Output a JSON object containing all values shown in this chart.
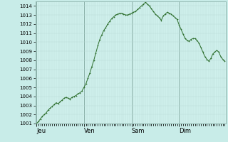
{
  "title": "",
  "background_color": "#c8ece8",
  "plot_bg_color": "#cff0ec",
  "grid_color_minor": "#b8d8d4",
  "grid_color_major": "#8ab0a8",
  "line_color": "#2d6e2d",
  "marker_color": "#2d6e2d",
  "ylim": [
    1001,
    1014.5
  ],
  "yticks": [
    1001,
    1002,
    1003,
    1004,
    1005,
    1006,
    1007,
    1008,
    1009,
    1010,
    1011,
    1012,
    1013,
    1014
  ],
  "day_labels": [
    "Jeu",
    "Ven",
    "Sam",
    "Dim"
  ],
  "day_positions": [
    0,
    24,
    48,
    72
  ],
  "num_hours": 96,
  "pressure_values": [
    1001.0,
    1001.2,
    1001.5,
    1001.8,
    1002.0,
    1002.2,
    1002.5,
    1002.7,
    1002.9,
    1003.1,
    1003.3,
    1003.2,
    1003.4,
    1003.6,
    1003.8,
    1003.9,
    1003.8,
    1003.7,
    1003.9,
    1004.0,
    1004.1,
    1004.3,
    1004.4,
    1004.6,
    1005.0,
    1005.4,
    1006.0,
    1006.6,
    1007.3,
    1008.0,
    1008.8,
    1009.6,
    1010.3,
    1010.8,
    1011.3,
    1011.6,
    1012.0,
    1012.3,
    1012.6,
    1012.8,
    1013.0,
    1013.1,
    1013.2,
    1013.2,
    1013.1,
    1013.0,
    1013.0,
    1013.1,
    1013.2,
    1013.3,
    1013.4,
    1013.6,
    1013.8,
    1014.0,
    1014.2,
    1014.4,
    1014.2,
    1014.0,
    1013.7,
    1013.4,
    1013.1,
    1012.9,
    1012.7,
    1012.4,
    1012.9,
    1013.1,
    1013.3,
    1013.2,
    1013.1,
    1012.9,
    1012.7,
    1012.5,
    1011.9,
    1011.4,
    1010.9,
    1010.4,
    1010.2,
    1010.1,
    1010.3,
    1010.4,
    1010.4,
    1010.2,
    1009.9,
    1009.4,
    1008.9,
    1008.4,
    1008.1,
    1007.9,
    1008.2,
    1008.7,
    1008.9,
    1009.1,
    1008.9,
    1008.4,
    1008.1,
    1007.9
  ]
}
